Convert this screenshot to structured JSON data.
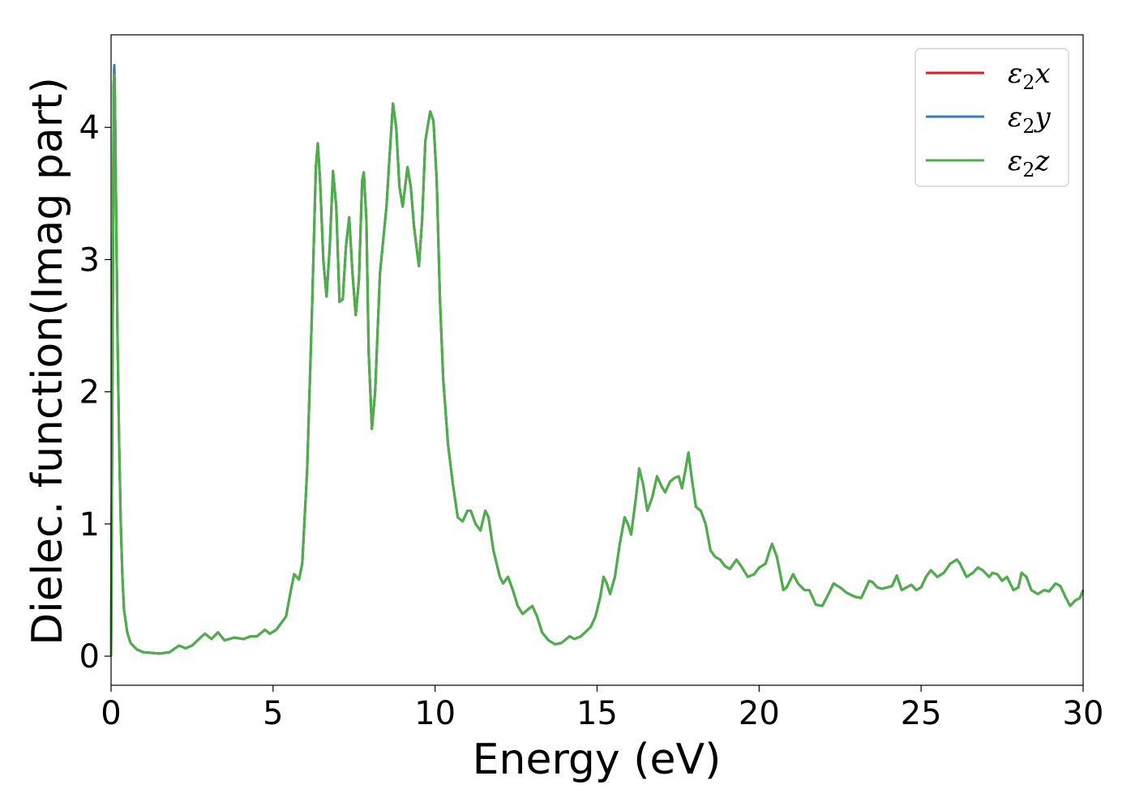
{
  "chart_data": {
    "type": "line",
    "title": "",
    "xlabel": "Energy (eV)",
    "ylabel": "Dielec. function(Imag part)",
    "xlim": [
      0,
      30
    ],
    "ylim": [
      -0.22,
      4.7
    ],
    "xticks": [
      0,
      5,
      10,
      15,
      20,
      25,
      30
    ],
    "yticks": [
      0,
      1,
      2,
      3,
      4
    ],
    "grid": false,
    "legend_position": "top-right",
    "series": [
      {
        "name": "ε2x",
        "symbol": "ε",
        "sub": "2",
        "var": "x",
        "color": "#e41a1c",
        "points": [
          [
            0.0,
            0.0
          ],
          [
            0.05,
            2.5
          ],
          [
            0.08,
            4.3
          ],
          [
            0.1,
            4.47
          ],
          [
            0.12,
            4.2
          ],
          [
            0.16,
            3.3
          ],
          [
            0.2,
            2.4
          ],
          [
            0.25,
            1.6
          ],
          [
            0.3,
            1.0
          ],
          [
            0.35,
            0.6
          ],
          [
            0.4,
            0.35
          ],
          [
            0.5,
            0.18
          ],
          [
            0.6,
            0.1
          ],
          [
            0.8,
            0.05
          ],
          [
            1.0,
            0.03
          ],
          [
            1.5,
            0.02
          ],
          [
            1.8,
            0.03
          ],
          [
            2.1,
            0.08
          ],
          [
            2.3,
            0.06
          ],
          [
            2.5,
            0.08
          ],
          [
            2.8,
            0.15
          ],
          [
            2.9,
            0.17
          ],
          [
            3.1,
            0.13
          ],
          [
            3.3,
            0.18
          ],
          [
            3.5,
            0.12
          ],
          [
            3.8,
            0.14
          ],
          [
            4.1,
            0.13
          ],
          [
            4.3,
            0.15
          ],
          [
            4.5,
            0.15
          ],
          [
            4.75,
            0.2
          ],
          [
            4.9,
            0.17
          ],
          [
            5.1,
            0.2
          ],
          [
            5.4,
            0.3
          ],
          [
            5.55,
            0.5
          ],
          [
            5.65,
            0.62
          ],
          [
            5.8,
            0.58
          ],
          [
            5.9,
            0.7
          ],
          [
            6.05,
            1.4
          ],
          [
            6.2,
            2.6
          ],
          [
            6.32,
            3.7
          ],
          [
            6.38,
            3.88
          ],
          [
            6.45,
            3.6
          ],
          [
            6.55,
            3.0
          ],
          [
            6.65,
            2.72
          ],
          [
            6.75,
            3.1
          ],
          [
            6.85,
            3.67
          ],
          [
            6.95,
            3.4
          ],
          [
            7.05,
            2.68
          ],
          [
            7.15,
            2.7
          ],
          [
            7.25,
            3.1
          ],
          [
            7.35,
            3.32
          ],
          [
            7.45,
            2.9
          ],
          [
            7.55,
            2.58
          ],
          [
            7.65,
            2.85
          ],
          [
            7.75,
            3.6
          ],
          [
            7.8,
            3.66
          ],
          [
            7.88,
            3.3
          ],
          [
            7.95,
            2.3
          ],
          [
            8.05,
            1.72
          ],
          [
            8.15,
            2.0
          ],
          [
            8.3,
            2.9
          ],
          [
            8.5,
            3.4
          ],
          [
            8.6,
            3.8
          ],
          [
            8.7,
            4.18
          ],
          [
            8.8,
            4.0
          ],
          [
            8.9,
            3.55
          ],
          [
            9.0,
            3.4
          ],
          [
            9.1,
            3.6
          ],
          [
            9.15,
            3.7
          ],
          [
            9.25,
            3.55
          ],
          [
            9.35,
            3.25
          ],
          [
            9.45,
            3.05
          ],
          [
            9.5,
            2.95
          ],
          [
            9.6,
            3.3
          ],
          [
            9.7,
            3.9
          ],
          [
            9.85,
            4.12
          ],
          [
            9.95,
            4.05
          ],
          [
            10.05,
            3.6
          ],
          [
            10.15,
            2.7
          ],
          [
            10.25,
            2.1
          ],
          [
            10.4,
            1.6
          ],
          [
            10.55,
            1.3
          ],
          [
            10.7,
            1.05
          ],
          [
            10.85,
            1.02
          ],
          [
            11.0,
            1.1
          ],
          [
            11.1,
            1.1
          ],
          [
            11.25,
            1.0
          ],
          [
            11.4,
            0.95
          ],
          [
            11.55,
            1.1
          ],
          [
            11.65,
            1.05
          ],
          [
            11.8,
            0.8
          ],
          [
            12.0,
            0.6
          ],
          [
            12.1,
            0.55
          ],
          [
            12.25,
            0.6
          ],
          [
            12.4,
            0.5
          ],
          [
            12.55,
            0.38
          ],
          [
            12.7,
            0.32
          ],
          [
            12.85,
            0.35
          ],
          [
            13.0,
            0.38
          ],
          [
            13.15,
            0.3
          ],
          [
            13.3,
            0.18
          ],
          [
            13.5,
            0.12
          ],
          [
            13.7,
            0.09
          ],
          [
            13.9,
            0.1
          ],
          [
            14.15,
            0.15
          ],
          [
            14.3,
            0.13
          ],
          [
            14.5,
            0.15
          ],
          [
            14.8,
            0.22
          ],
          [
            14.95,
            0.3
          ],
          [
            15.1,
            0.45
          ],
          [
            15.2,
            0.6
          ],
          [
            15.3,
            0.55
          ],
          [
            15.4,
            0.47
          ],
          [
            15.55,
            0.6
          ],
          [
            15.7,
            0.85
          ],
          [
            15.85,
            1.05
          ],
          [
            15.95,
            1.0
          ],
          [
            16.05,
            0.92
          ],
          [
            16.2,
            1.2
          ],
          [
            16.3,
            1.42
          ],
          [
            16.42,
            1.3
          ],
          [
            16.55,
            1.1
          ],
          [
            16.7,
            1.2
          ],
          [
            16.85,
            1.36
          ],
          [
            17.0,
            1.28
          ],
          [
            17.1,
            1.24
          ],
          [
            17.25,
            1.32
          ],
          [
            17.4,
            1.35
          ],
          [
            17.52,
            1.36
          ],
          [
            17.62,
            1.27
          ],
          [
            17.72,
            1.4
          ],
          [
            17.82,
            1.54
          ],
          [
            17.92,
            1.35
          ],
          [
            18.05,
            1.13
          ],
          [
            18.2,
            1.1
          ],
          [
            18.35,
            1.0
          ],
          [
            18.5,
            0.8
          ],
          [
            18.65,
            0.75
          ],
          [
            18.8,
            0.73
          ],
          [
            18.95,
            0.68
          ],
          [
            19.1,
            0.66
          ],
          [
            19.3,
            0.73
          ],
          [
            19.45,
            0.68
          ],
          [
            19.65,
            0.6
          ],
          [
            19.85,
            0.62
          ],
          [
            20.0,
            0.67
          ],
          [
            20.2,
            0.7
          ],
          [
            20.3,
            0.78
          ],
          [
            20.4,
            0.85
          ],
          [
            20.55,
            0.75
          ],
          [
            20.75,
            0.5
          ],
          [
            20.85,
            0.52
          ],
          [
            21.05,
            0.62
          ],
          [
            21.2,
            0.55
          ],
          [
            21.4,
            0.5
          ],
          [
            21.55,
            0.5
          ],
          [
            21.75,
            0.39
          ],
          [
            21.95,
            0.38
          ],
          [
            22.1,
            0.45
          ],
          [
            22.3,
            0.55
          ],
          [
            22.5,
            0.52
          ],
          [
            22.7,
            0.48
          ],
          [
            22.95,
            0.45
          ],
          [
            23.15,
            0.44
          ],
          [
            23.4,
            0.57
          ],
          [
            23.5,
            0.56
          ],
          [
            23.65,
            0.52
          ],
          [
            23.8,
            0.51
          ],
          [
            23.95,
            0.52
          ],
          [
            24.1,
            0.53
          ],
          [
            24.25,
            0.61
          ],
          [
            24.4,
            0.5
          ],
          [
            24.55,
            0.52
          ],
          [
            24.7,
            0.54
          ],
          [
            24.85,
            0.5
          ],
          [
            25.0,
            0.52
          ],
          [
            25.15,
            0.6
          ],
          [
            25.3,
            0.65
          ],
          [
            25.5,
            0.6
          ],
          [
            25.7,
            0.63
          ],
          [
            25.9,
            0.7
          ],
          [
            26.1,
            0.73
          ],
          [
            26.2,
            0.7
          ],
          [
            26.4,
            0.6
          ],
          [
            26.6,
            0.63
          ],
          [
            26.75,
            0.67
          ],
          [
            26.9,
            0.65
          ],
          [
            27.1,
            0.6
          ],
          [
            27.2,
            0.63
          ],
          [
            27.35,
            0.62
          ],
          [
            27.5,
            0.57
          ],
          [
            27.65,
            0.6
          ],
          [
            27.85,
            0.5
          ],
          [
            28.0,
            0.52
          ],
          [
            28.1,
            0.63
          ],
          [
            28.25,
            0.6
          ],
          [
            28.4,
            0.5
          ],
          [
            28.6,
            0.47
          ],
          [
            28.8,
            0.5
          ],
          [
            28.95,
            0.49
          ],
          [
            29.15,
            0.55
          ],
          [
            29.3,
            0.53
          ],
          [
            29.45,
            0.45
          ],
          [
            29.6,
            0.38
          ],
          [
            29.75,
            0.42
          ],
          [
            29.9,
            0.44
          ],
          [
            30.0,
            0.5
          ]
        ]
      },
      {
        "name": "ε2y",
        "symbol": "ε",
        "sub": "2",
        "var": "y",
        "color": "#377eb8",
        "same_as": 0
      },
      {
        "name": "ε2z",
        "symbol": "ε",
        "sub": "2",
        "var": "z",
        "color": "#4daf4a",
        "same_as": 0,
        "peak_override": 4.4
      }
    ]
  }
}
